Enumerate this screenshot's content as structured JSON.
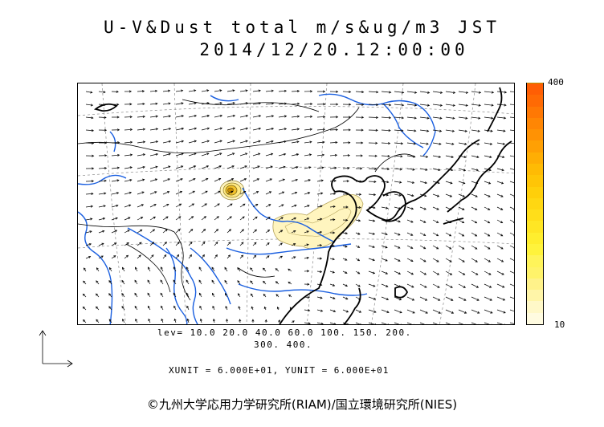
{
  "title": {
    "line1": "U-V&Dust total m/s&ug/m3 JST",
    "line2": "2014/12/20.12:00:00"
  },
  "colorbar": {
    "max_label": "400",
    "min_label": "10",
    "colors": [
      "#fffbe0",
      "#fff8c8",
      "#fff5a8",
      "#fff28a",
      "#fff36a",
      "#fff45a",
      "#fff33c",
      "#ffee2e",
      "#ffe624",
      "#ffde1a",
      "#ffd712",
      "#ffcf0a",
      "#ffc506",
      "#ffbb04",
      "#ffae04",
      "#ffa004",
      "#ff9204",
      "#ff8604",
      "#ff7804",
      "#ff6a04",
      "#ff5e04"
    ]
  },
  "levels": {
    "line1": "lev= 10.0 20.0 40.0 60.0 100. 150. 200.",
    "line2": "300. 400."
  },
  "units_text": "XUNIT = 6.000E+01, YUNIT = 6.000E+01",
  "credit": "©九州大学応用力学研究所(RIAM)/国立環境研究所(NIES)",
  "map": {
    "coast_color": "#000000",
    "river_color": "#1a5fe0",
    "dust_fill": "#fff5bf",
    "dust_core": "#d9a800"
  }
}
